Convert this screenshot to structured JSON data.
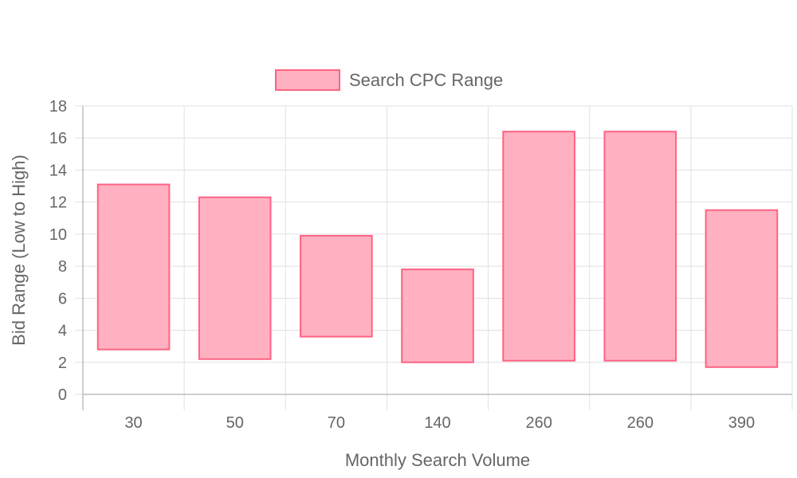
{
  "chart_data": {
    "type": "bar",
    "subtype": "floating-range",
    "categories": [
      "30",
      "50",
      "70",
      "140",
      "260",
      "260",
      "390"
    ],
    "series": [
      {
        "name": "Search CPC Range",
        "ranges": [
          [
            2.8,
            13.1
          ],
          [
            2.2,
            12.3
          ],
          [
            3.6,
            9.9
          ],
          [
            2.0,
            7.8
          ],
          [
            2.1,
            16.4
          ],
          [
            2.1,
            16.4
          ],
          [
            1.7,
            11.5
          ]
        ],
        "fill_color": "#ffb1c1",
        "border_color": "#ff6384"
      }
    ],
    "xlabel": "Monthly Search Volume",
    "ylabel": "Bid Range (Low to High)",
    "ylim": [
      0,
      18
    ],
    "yticks": [
      "0",
      "2",
      "4",
      "6",
      "8",
      "10",
      "12",
      "14",
      "16",
      "18"
    ],
    "grid": true,
    "legend_position": "top"
  }
}
